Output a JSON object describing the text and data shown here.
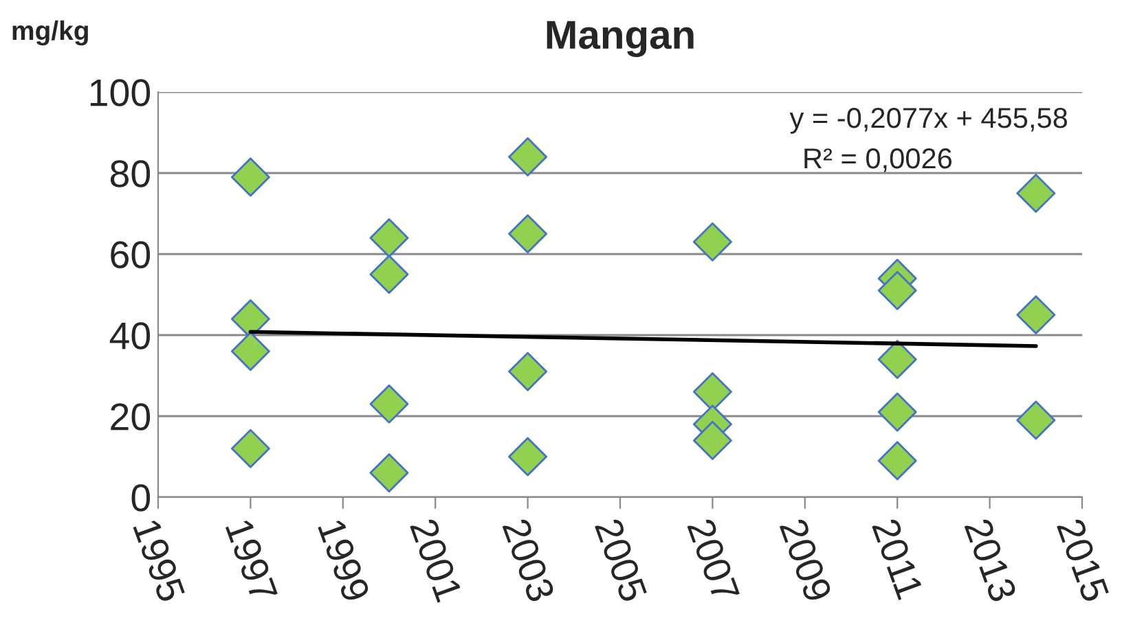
{
  "chart_data": {
    "type": "scatter",
    "title": "Mangan",
    "ylabel": "mg/kg",
    "xlim": [
      1995,
      2015
    ],
    "xticks": [
      1995,
      1997,
      1999,
      2001,
      2003,
      2005,
      2007,
      2009,
      2011,
      2013,
      2015
    ],
    "ylim": [
      0,
      100
    ],
    "yticks": [
      0,
      20,
      40,
      60,
      80,
      100
    ],
    "grid": "y",
    "marker": "diamond",
    "legend": false,
    "series": [
      {
        "color": "#92d050",
        "x": [
          1997,
          1997,
          1997,
          1997,
          2000,
          2000,
          2000,
          2000,
          2003,
          2003,
          2003,
          2003,
          2007,
          2007,
          2007,
          2007,
          2011,
          2011,
          2011,
          2011,
          2011,
          2014,
          2014,
          2014
        ],
        "values": [
          79,
          44,
          36,
          12,
          64,
          55,
          23,
          6,
          84,
          65,
          31,
          10,
          63,
          26,
          18,
          14,
          54,
          51,
          34,
          21,
          9,
          75,
          45,
          19
        ]
      },
      {
        "type": "line",
        "color": "#000000",
        "x": [
          1997,
          2014
        ],
        "values": [
          40.8,
          37.3
        ],
        "line_style": "solid",
        "marker": "none"
      }
    ],
    "annotations": [
      "y = -0,2077x + 455,58",
      "R² = 0,0026"
    ]
  }
}
